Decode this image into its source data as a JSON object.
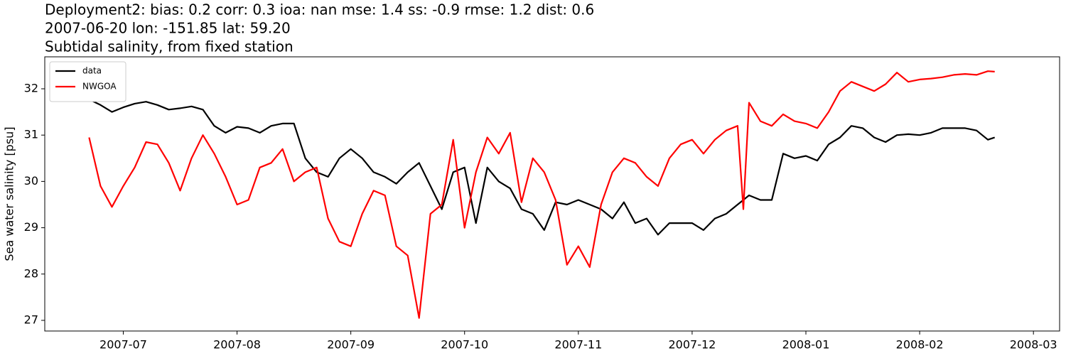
{
  "chart_data": {
    "type": "line",
    "title": "Deployment2: bias: 0.2  corr: 0.3  ioa: nan  mse: 1.4  ss: -0.9  rmse: 1.2  dist: 0.6",
    "subtitle": "2007-06-20 lon: -151.85 lat: 59.20",
    "subtitle2": "Subtidal salinity, from fixed station",
    "y_label": "Sea water salinity [psu]",
    "x": [
      6.7,
      6.8,
      6.9,
      7.0,
      7.1,
      7.2,
      7.3,
      7.4,
      7.5,
      7.6,
      7.7,
      7.8,
      7.9,
      8.0,
      8.1,
      8.2,
      8.3,
      8.4,
      8.5,
      8.6,
      8.7,
      8.8,
      8.9,
      9.0,
      9.1,
      9.2,
      9.3,
      9.4,
      9.5,
      9.6,
      9.7,
      9.8,
      9.9,
      10.0,
      10.1,
      10.2,
      10.3,
      10.4,
      10.5,
      10.6,
      10.7,
      10.8,
      10.9,
      11.0,
      11.1,
      11.2,
      11.3,
      11.4,
      11.5,
      11.6,
      11.7,
      11.8,
      11.9,
      12.0,
      12.1,
      12.2,
      12.3,
      12.4,
      12.45,
      12.5,
      12.6,
      12.7,
      12.8,
      12.9,
      13.0,
      13.1,
      13.2,
      13.3,
      13.4,
      13.5,
      13.6,
      13.7,
      13.8,
      13.9,
      14.0,
      14.1,
      14.2,
      14.3,
      14.4,
      14.5,
      14.6,
      14.66
    ],
    "series": [
      {
        "name": "data",
        "color": "#000000",
        "values": [
          31.77,
          31.65,
          31.5,
          31.6,
          31.68,
          31.72,
          31.65,
          31.55,
          31.58,
          31.62,
          31.55,
          31.2,
          31.05,
          31.18,
          31.15,
          31.05,
          31.2,
          31.25,
          31.25,
          30.5,
          30.2,
          30.1,
          30.5,
          30.7,
          30.5,
          30.2,
          30.1,
          29.95,
          30.2,
          30.4,
          29.9,
          29.4,
          30.2,
          30.3,
          29.1,
          30.3,
          30.0,
          29.85,
          29.4,
          29.3,
          28.95,
          29.55,
          29.5,
          29.6,
          29.5,
          29.4,
          29.2,
          29.55,
          29.1,
          29.2,
          28.85,
          29.1,
          29.1,
          29.1,
          28.95,
          29.2,
          29.3,
          29.5,
          29.6,
          29.7,
          29.6,
          29.6,
          30.6,
          30.5,
          30.55,
          30.45,
          30.8,
          30.95,
          31.2,
          31.15,
          30.95,
          30.85,
          31.0,
          31.02,
          31.0,
          31.05,
          31.15,
          31.15,
          31.15,
          31.1,
          30.9,
          30.95
        ]
      },
      {
        "name": "NWGOA",
        "color": "#ff0000",
        "values": [
          30.95,
          29.9,
          29.45,
          29.9,
          30.3,
          30.85,
          30.8,
          30.4,
          29.8,
          30.5,
          31.0,
          30.6,
          30.1,
          29.5,
          29.6,
          30.3,
          30.4,
          30.7,
          30.0,
          30.2,
          30.3,
          29.2,
          28.7,
          28.6,
          29.3,
          29.8,
          29.7,
          28.6,
          28.4,
          27.05,
          29.3,
          29.5,
          30.9,
          29.0,
          30.2,
          30.95,
          30.6,
          31.05,
          29.55,
          30.5,
          30.2,
          29.6,
          28.2,
          28.6,
          28.15,
          29.5,
          30.2,
          30.5,
          30.4,
          30.1,
          29.9,
          30.5,
          30.8,
          30.9,
          30.6,
          30.9,
          31.1,
          31.2,
          29.4,
          31.7,
          31.3,
          31.2,
          31.45,
          31.3,
          31.25,
          31.15,
          31.5,
          31.95,
          32.15,
          32.05,
          31.95,
          32.1,
          32.35,
          32.15,
          32.2,
          32.22,
          32.25,
          32.3,
          32.32,
          32.3,
          32.38,
          32.37
        ]
      }
    ],
    "xlim": [
      6.31,
      15.23
    ],
    "xticks": [
      {
        "value": 7,
        "label": "2007-07"
      },
      {
        "value": 8,
        "label": "2007-08"
      },
      {
        "value": 9,
        "label": "2007-09"
      },
      {
        "value": 10,
        "label": "2007-10"
      },
      {
        "value": 11,
        "label": "2007-11"
      },
      {
        "value": 12,
        "label": "2007-12"
      },
      {
        "value": 13,
        "label": "2008-01"
      },
      {
        "value": 14,
        "label": "2008-02"
      },
      {
        "value": 15,
        "label": "2008-03"
      }
    ],
    "ylim": [
      26.77,
      32.69
    ],
    "yticks": [
      27,
      28,
      29,
      30,
      31,
      32
    ],
    "legend": "upper left"
  }
}
